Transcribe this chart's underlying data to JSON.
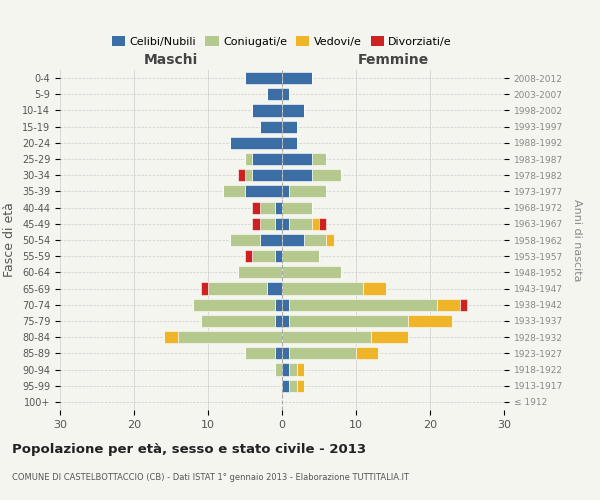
{
  "age_groups": [
    "100+",
    "95-99",
    "90-94",
    "85-89",
    "80-84",
    "75-79",
    "70-74",
    "65-69",
    "60-64",
    "55-59",
    "50-54",
    "45-49",
    "40-44",
    "35-39",
    "30-34",
    "25-29",
    "20-24",
    "15-19",
    "10-14",
    "5-9",
    "0-4"
  ],
  "birth_years": [
    "≤ 1912",
    "1913-1917",
    "1918-1922",
    "1923-1927",
    "1928-1932",
    "1933-1937",
    "1938-1942",
    "1943-1947",
    "1948-1952",
    "1953-1957",
    "1958-1962",
    "1963-1967",
    "1968-1972",
    "1973-1977",
    "1978-1982",
    "1983-1987",
    "1988-1992",
    "1993-1997",
    "1998-2002",
    "2003-2007",
    "2008-2012"
  ],
  "maschi_celibi": [
    0,
    0,
    0,
    1,
    0,
    1,
    1,
    2,
    0,
    1,
    3,
    1,
    1,
    5,
    4,
    4,
    7,
    3,
    4,
    2,
    5
  ],
  "maschi_coniugati": [
    0,
    0,
    1,
    4,
    14,
    10,
    11,
    8,
    6,
    3,
    4,
    2,
    2,
    3,
    1,
    1,
    0,
    0,
    0,
    0,
    0
  ],
  "maschi_vedovi": [
    0,
    0,
    0,
    0,
    2,
    0,
    0,
    0,
    0,
    0,
    0,
    0,
    0,
    0,
    0,
    0,
    0,
    0,
    0,
    0,
    0
  ],
  "maschi_divorziati": [
    0,
    0,
    0,
    0,
    0,
    0,
    0,
    1,
    0,
    1,
    0,
    1,
    1,
    0,
    1,
    0,
    0,
    0,
    0,
    0,
    0
  ],
  "femmine_celibi": [
    0,
    1,
    1,
    1,
    0,
    1,
    1,
    0,
    0,
    0,
    3,
    1,
    0,
    1,
    4,
    4,
    2,
    2,
    3,
    1,
    4
  ],
  "femmine_coniugati": [
    0,
    1,
    1,
    9,
    12,
    16,
    20,
    11,
    8,
    5,
    3,
    3,
    4,
    5,
    4,
    2,
    0,
    0,
    0,
    0,
    0
  ],
  "femmine_vedovi": [
    0,
    1,
    1,
    3,
    5,
    6,
    3,
    3,
    0,
    0,
    1,
    1,
    0,
    0,
    0,
    0,
    0,
    0,
    0,
    0,
    0
  ],
  "femmine_divorziati": [
    0,
    0,
    0,
    0,
    0,
    0,
    1,
    0,
    0,
    0,
    0,
    1,
    0,
    0,
    0,
    0,
    0,
    0,
    0,
    0,
    0
  ],
  "color_celibi": "#3b6ea5",
  "color_coniugati": "#b5c98e",
  "color_vedovi": "#f0b429",
  "color_divorziati": "#cc2222",
  "xlim": 30,
  "title": "Popolazione per età, sesso e stato civile - 2013",
  "subtitle": "COMUNE DI CASTELBOTTACCIO (CB) - Dati ISTAT 1° gennaio 2013 - Elaborazione TUTTITALIA.IT",
  "ylabel_left": "Fasce di età",
  "ylabel_right": "Anni di nascita",
  "xlabel_maschi": "Maschi",
  "xlabel_femmine": "Femmine",
  "bg_color": "#f5f5f0",
  "grid_color": "#cccccc"
}
